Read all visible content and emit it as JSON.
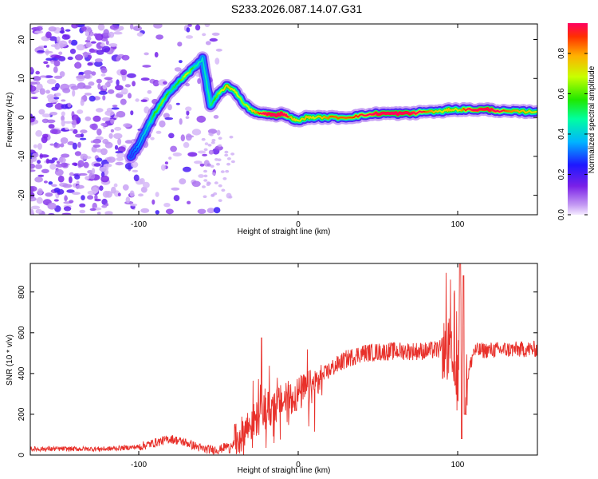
{
  "title": "S233.2026.087.14.07.G31",
  "colors": {
    "snr_line": "#e8302a",
    "frame": "#000000",
    "ridge_core": "#ff2020"
  },
  "chart_data": [
    {
      "type": "heatmap",
      "name": "spectrogram",
      "xlabel": "Height of straight line (km)",
      "ylabel": "Frequency (Hz)",
      "xlim": [
        -168,
        150
      ],
      "ylim": [
        -25,
        24
      ],
      "xticks": [
        -100,
        0,
        100
      ],
      "xtick_labels": [
        "-100",
        "0",
        "100"
      ],
      "yticks": [
        -20,
        -10,
        0,
        10,
        20
      ],
      "ytick_labels": [
        "-20",
        "-10",
        "0",
        "10",
        "20"
      ],
      "colorbar": {
        "label": "Normalized spectral amplitude",
        "range": [
          0,
          0.95
        ],
        "ticks": [
          0.0,
          0.2,
          0.4,
          0.6,
          0.8
        ],
        "tick_labels": [
          "0.0",
          "0.2",
          "0.4",
          "0.6",
          "0.8"
        ]
      },
      "ridge": {
        "x": [
          -105,
          -100,
          -95,
          -90,
          -85,
          -80,
          -75,
          -70,
          -65,
          -60,
          -55,
          -50,
          -45,
          -40,
          -35,
          -30,
          -25,
          -20,
          -15,
          -10,
          -5,
          0,
          5,
          10,
          20,
          30,
          40,
          50,
          60,
          70,
          80,
          90,
          95,
          100,
          110,
          120,
          130,
          140,
          150
        ],
        "y": [
          -10,
          -7,
          -3,
          1,
          4,
          7,
          9,
          11,
          13,
          15,
          3,
          6,
          8,
          7,
          4,
          2,
          1,
          1,
          0.5,
          1,
          0,
          -1,
          0,
          0,
          0,
          0,
          0.5,
          1,
          1,
          1,
          1.5,
          1.5,
          2,
          2,
          2,
          2,
          1.5,
          1.5,
          1.5
        ],
        "amplitude": [
          0.2,
          0.25,
          0.3,
          0.4,
          0.45,
          0.35,
          0.4,
          0.5,
          0.35,
          0.3,
          0.35,
          0.45,
          0.55,
          0.5,
          0.45,
          0.5,
          0.6,
          0.8,
          0.9,
          0.85,
          0.55,
          0.5,
          0.55,
          0.5,
          0.6,
          0.6,
          0.65,
          0.85,
          0.9,
          0.85,
          0.6,
          0.5,
          0.55,
          0.5,
          0.8,
          0.85,
          0.6,
          0.55,
          0.5
        ]
      }
    },
    {
      "type": "line",
      "name": "snr",
      "xlabel": "Height of straight line (km)",
      "ylabel": "SNR (10 * v/v)",
      "xlim": [
        -168,
        150
      ],
      "ylim": [
        0,
        940
      ],
      "xticks": [
        -100,
        0,
        100
      ],
      "xtick_labels": [
        "-100",
        "0",
        "100"
      ],
      "yticks": [
        0,
        200,
        400,
        600,
        800
      ],
      "ytick_labels": [
        "0",
        "200",
        "400",
        "600",
        "800"
      ],
      "trend": {
        "x": [
          -168,
          -120,
          -100,
          -90,
          -80,
          -70,
          -60,
          -50,
          -40,
          -30,
          -20,
          -10,
          0,
          10,
          20,
          30,
          40,
          60,
          80,
          90,
          95,
          100,
          102,
          104,
          110,
          120,
          150
        ],
        "y": [
          30,
          30,
          40,
          60,
          80,
          60,
          30,
          25,
          60,
          150,
          220,
          260,
          300,
          340,
          420,
          470,
          500,
          510,
          510,
          520,
          500,
          350,
          700,
          300,
          510,
          515,
          520
        ]
      }
    }
  ]
}
